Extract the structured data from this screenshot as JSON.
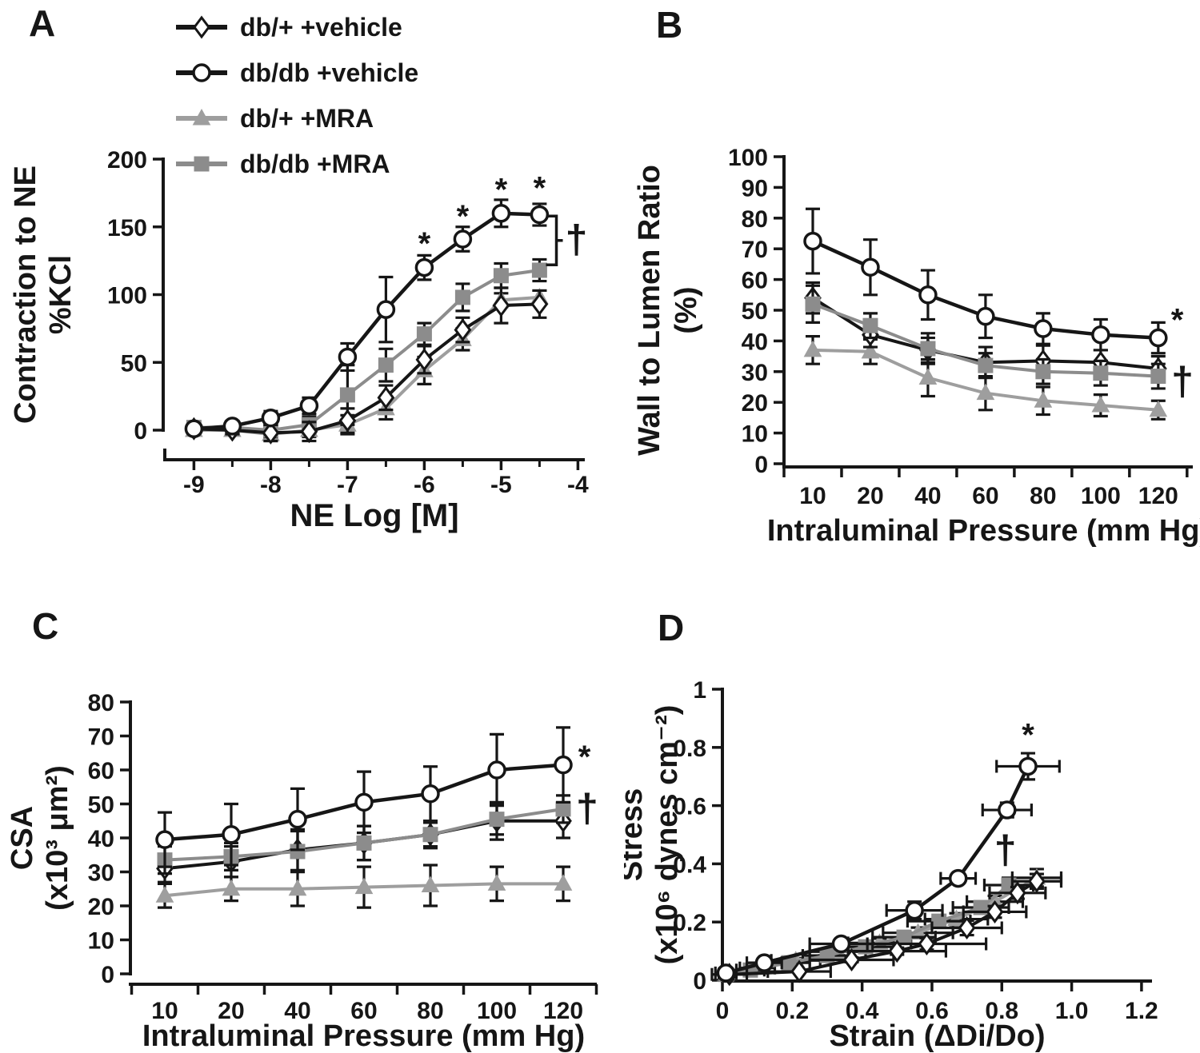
{
  "symbols": {
    "star": "*",
    "dagger": "†"
  },
  "colors": {
    "black": "#161616",
    "gray": "#8c8c8c",
    "gray_light": "#9e9e9e",
    "white": "#ffffff",
    "background": "#ffffff"
  },
  "legend": {
    "items": [
      {
        "label": "db/+ +vehicle",
        "marker": "diamond-open",
        "color": "black"
      },
      {
        "label": "db/db +vehicle",
        "marker": "circle-open",
        "color": "black"
      },
      {
        "label": "db/+ +MRA",
        "marker": "triangle-filled",
        "color": "gray_light"
      },
      {
        "label": "db/db +MRA",
        "marker": "square-filled",
        "color": "gray"
      }
    ]
  },
  "chart_data": [
    {
      "id": "A",
      "panel_label": "A",
      "type": "line",
      "xlabel": "NE Log [M]",
      "ylabel_lines": [
        "Contraction to NE",
        "%KCl"
      ],
      "xlim": [
        -9.4,
        -3.9
      ],
      "ylim": [
        0,
        200
      ],
      "grid": false,
      "legend_position": "top-left",
      "has_legend": true,
      "yticks": [
        {
          "v": 0,
          "label": "0"
        },
        {
          "v": 50,
          "label": "50"
        },
        {
          "v": 100,
          "label": "100"
        },
        {
          "v": 150,
          "label": "150"
        },
        {
          "v": 200,
          "label": "200"
        }
      ],
      "xtick_marks": [
        -9,
        -8,
        -7,
        -6,
        -5,
        -4
      ],
      "xminor": [
        -8.5,
        -7.5,
        -6.5,
        -5.5,
        -4.5
      ],
      "xtick_labels": [
        {
          "v": -9,
          "label": "-9"
        },
        {
          "v": -8,
          "label": "-8"
        },
        {
          "v": -7,
          "label": "-7"
        },
        {
          "v": -6,
          "label": "-6"
        },
        {
          "v": -5,
          "label": "-5"
        },
        {
          "v": -4,
          "label": "-4"
        }
      ],
      "x": [
        -9,
        -8.5,
        -8,
        -7.5,
        -7,
        -6.5,
        -6,
        -5.5,
        -5,
        -4.5
      ],
      "series": [
        {
          "key": "db-plus-vehicle",
          "name": "db/+ +vehicle",
          "marker": "diamond-open",
          "color": "black",
          "y": [
            1,
            0,
            -2,
            -1,
            7,
            24,
            52,
            74,
            92,
            93
          ],
          "yerr": [
            2,
            3,
            6,
            7,
            9,
            9,
            10,
            9,
            13,
            10
          ]
        },
        {
          "key": "db-db-vehicle",
          "name": "db/db +vehicle",
          "marker": "circle-open",
          "color": "black",
          "y": [
            1,
            3,
            9,
            18,
            54,
            89,
            120,
            141,
            160,
            159
          ],
          "yerr": [
            2,
            3,
            5,
            6,
            10,
            24,
            9,
            9,
            10,
            8
          ]
        },
        {
          "key": "db-plus-mra",
          "name": "db/+ +MRA",
          "marker": "triangle-filled",
          "color": "gray_light",
          "y": [
            0,
            0,
            -3,
            0,
            4,
            16,
            44,
            67,
            96,
            98
          ],
          "yerr": [
            2,
            3,
            5,
            5,
            7,
            8,
            10,
            8,
            5,
            5
          ]
        },
        {
          "key": "db-db-mra",
          "name": "db/db +MRA",
          "marker": "square-filled",
          "color": "gray",
          "y": [
            2,
            2,
            0,
            4,
            26,
            48,
            71,
            98,
            114,
            118
          ],
          "yerr": [
            3,
            3,
            5,
            6,
            22,
            12,
            8,
            10,
            9,
            8
          ]
        }
      ],
      "draw_order": [
        2,
        3,
        0,
        1
      ],
      "annotations": [
        {
          "type": "star",
          "x": -6,
          "y": 138
        },
        {
          "type": "star",
          "x": -5.5,
          "y": 158
        },
        {
          "type": "star",
          "x": -5,
          "y": 178
        },
        {
          "type": "star",
          "x": -4.5,
          "y": 179
        },
        {
          "type": "bracket",
          "x": -4.28,
          "y1": 158,
          "y2": 122
        },
        {
          "type": "dagger",
          "x": -4.02,
          "y": 140
        }
      ]
    },
    {
      "id": "B",
      "panel_label": "B",
      "type": "line",
      "xlabel": "Intraluminal Pressure (mm Hg)",
      "ylabel_lines": [
        "Wall to Lumen Ratio",
        "(%)"
      ],
      "xlim": [
        -0.5,
        6.6
      ],
      "ylim": [
        0,
        100
      ],
      "grid": false,
      "has_legend": false,
      "yticks": [
        {
          "v": 0,
          "label": "0"
        },
        {
          "v": 10,
          "label": "10"
        },
        {
          "v": 20,
          "label": "20"
        },
        {
          "v": 30,
          "label": "30"
        },
        {
          "v": 40,
          "label": "40"
        },
        {
          "v": 50,
          "label": "50"
        },
        {
          "v": 60,
          "label": "60"
        },
        {
          "v": 70,
          "label": "70"
        },
        {
          "v": 80,
          "label": "80"
        },
        {
          "v": 90,
          "label": "90"
        },
        {
          "v": 100,
          "label": "100"
        }
      ],
      "xtick_marks": [
        -0.5,
        0.5,
        1.5,
        2.5,
        3.5,
        4.5,
        5.5,
        6.5
      ],
      "xminor": [],
      "xtick_labels": [
        {
          "v": 0,
          "label": "10"
        },
        {
          "v": 1,
          "label": "20"
        },
        {
          "v": 2,
          "label": "40"
        },
        {
          "v": 3,
          "label": "60"
        },
        {
          "v": 4,
          "label": "80"
        },
        {
          "v": 5,
          "label": "100"
        },
        {
          "v": 6,
          "label": "120"
        }
      ],
      "x": [
        0,
        1,
        2,
        3,
        4,
        5,
        6
      ],
      "series": [
        {
          "key": "db-plus-vehicle",
          "name": "db/+ +vehicle",
          "marker": "diamond-open",
          "color": "black",
          "y": [
            54,
            42,
            37,
            33,
            33.5,
            33,
            31
          ],
          "yerr": [
            5,
            4,
            4,
            5,
            5,
            4,
            4
          ]
        },
        {
          "key": "db-db-vehicle",
          "name": "db/db +vehicle",
          "marker": "circle-open",
          "color": "black",
          "y": [
            72.5,
            64,
            55,
            48,
            44,
            42,
            41
          ],
          "yerr": [
            10.5,
            9,
            8,
            7,
            5,
            5,
            5
          ]
        },
        {
          "key": "db-plus-mra",
          "name": "db/+ +MRA",
          "marker": "triangle-filled",
          "color": "gray_light",
          "y": [
            37,
            36.5,
            28,
            23,
            20.5,
            19,
            17.5
          ],
          "yerr": [
            4.5,
            4,
            6,
            5.5,
            4.5,
            3.5,
            3
          ]
        },
        {
          "key": "db-db-mra",
          "name": "db/db +MRA",
          "marker": "square-filled",
          "color": "gray",
          "y": [
            52,
            45,
            37.5,
            32,
            30,
            29.5,
            28.5
          ],
          "yerr": [
            6,
            4,
            5,
            4,
            4,
            4,
            4
          ]
        }
      ],
      "draw_order": [
        2,
        0,
        3,
        1
      ],
      "annotations": [
        {
          "type": "star",
          "x": 6.33,
          "y": 47
        },
        {
          "type": "dagger",
          "x": 6.42,
          "y": 26.5
        }
      ]
    },
    {
      "id": "C",
      "panel_label": "C",
      "type": "line",
      "xlabel": "Intraluminal Pressure (mm Hg)",
      "ylabel_lines": [
        "CSA",
        "(x10³ μm²)"
      ],
      "xlim": [
        -0.518,
        6.506
      ],
      "ylim": [
        0,
        80
      ],
      "grid": false,
      "has_legend": false,
      "yticks": [
        {
          "v": 0,
          "label": "0"
        },
        {
          "v": 10,
          "label": "10"
        },
        {
          "v": 20,
          "label": "20"
        },
        {
          "v": 30,
          "label": "30"
        },
        {
          "v": 40,
          "label": "40"
        },
        {
          "v": 50,
          "label": "50"
        },
        {
          "v": 60,
          "label": "60"
        },
        {
          "v": 70,
          "label": "70"
        },
        {
          "v": 80,
          "label": "80"
        }
      ],
      "xtick_marks": [
        -0.5,
        0.5,
        1.5,
        2.5,
        3.5,
        4.5,
        5.5,
        6.5
      ],
      "xminor": [],
      "xtick_labels": [
        {
          "v": 0,
          "label": "10"
        },
        {
          "v": 1,
          "label": "20"
        },
        {
          "v": 2,
          "label": "40"
        },
        {
          "v": 3,
          "label": "60"
        },
        {
          "v": 4,
          "label": "80"
        },
        {
          "v": 5,
          "label": "100"
        },
        {
          "v": 6,
          "label": "120"
        }
      ],
      "x": [
        0,
        1,
        2,
        3,
        4,
        5,
        6
      ],
      "series": [
        {
          "key": "db-plus-vehicle",
          "name": "db/+ +vehicle",
          "marker": "diamond-open",
          "color": "black",
          "y": [
            31,
            33,
            36.5,
            38.5,
            41,
            45,
            45
          ],
          "yerr": [
            4,
            4.5,
            6,
            5,
            3.5,
            5.5,
            5
          ]
        },
        {
          "key": "db-db-vehicle",
          "name": "db/db +vehicle",
          "marker": "circle-open",
          "color": "black",
          "y": [
            39.5,
            41,
            45.5,
            50.5,
            53,
            60,
            61.5
          ],
          "yerr": [
            8,
            9,
            9,
            9,
            8,
            10.5,
            11
          ]
        },
        {
          "key": "db-plus-mra",
          "name": "db/+ +MRA",
          "marker": "triangle-filled",
          "color": "gray_light",
          "y": [
            23,
            25,
            25,
            25.5,
            26,
            26.5,
            26.5
          ],
          "yerr": [
            3.5,
            3.5,
            5,
            6,
            6,
            5,
            5
          ]
        },
        {
          "key": "db-db-mra",
          "name": "db/db +MRA",
          "marker": "square-filled",
          "color": "gray",
          "y": [
            33.5,
            34.5,
            36,
            38.5,
            41,
            45.5,
            48.5
          ],
          "yerr": [
            4,
            4,
            6,
            5,
            4,
            4.5,
            4
          ]
        }
      ],
      "draw_order": [
        2,
        0,
        3,
        1
      ],
      "annotations": [
        {
          "type": "star",
          "x": 6.32,
          "y": 64
        },
        {
          "type": "dagger",
          "x": 6.36,
          "y": 48.5
        }
      ]
    },
    {
      "id": "D",
      "panel_label": "D",
      "type": "line",
      "xlabel": "Strain (ΔDi/Do)",
      "ylabel_lines": [
        "Stress",
        "(x10⁶ dynes cm⁻²)"
      ],
      "xlim": [
        0,
        1.23
      ],
      "ylim": [
        0,
        1
      ],
      "grid": false,
      "has_legend": false,
      "yticks": [
        {
          "v": 0,
          "label": "0"
        },
        {
          "v": 0.2,
          "label": "0.2"
        },
        {
          "v": 0.4,
          "label": "0.4"
        },
        {
          "v": 0.6,
          "label": "0.6"
        },
        {
          "v": 0.8,
          "label": "0.8"
        },
        {
          "v": 1,
          "label": "1"
        }
      ],
      "xtick_marks": [
        0,
        0.2,
        0.4,
        0.6,
        0.8,
        1.0,
        1.2
      ],
      "xminor": [],
      "xtick_labels": [
        {
          "v": 0,
          "label": "0"
        },
        {
          "v": 0.2,
          "label": "0.2"
        },
        {
          "v": 0.4,
          "label": "0.4"
        },
        {
          "v": 0.6,
          "label": "0.6"
        },
        {
          "v": 0.8,
          "label": "0.8"
        },
        {
          "v": 1.0,
          "label": "1.0"
        },
        {
          "v": 1.2,
          "label": "1.2"
        }
      ],
      "series": [
        {
          "key": "db-plus-vehicle",
          "name": "db/+ +vehicle",
          "marker": "diamond-open",
          "color": "black",
          "x": [
            0.02,
            0.22,
            0.37,
            0.5,
            0.585,
            0.7,
            0.78,
            0.845,
            0.9
          ],
          "y": [
            0.02,
            0.03,
            0.07,
            0.1,
            0.125,
            0.18,
            0.235,
            0.3,
            0.34
          ],
          "xerr": [
            0.05,
            0.09,
            0.12,
            0.14,
            0.17,
            0.1,
            0.09,
            0.08,
            0.07
          ],
          "yerr": [
            0.004,
            0.005,
            0.008,
            0.012,
            0.02,
            0.025,
            0.02,
            0.02,
            0.025
          ]
        },
        {
          "key": "db-db-vehicle",
          "name": "db/db +vehicle",
          "marker": "circle-open",
          "color": "black",
          "x": [
            0.01,
            0.12,
            0.34,
            0.55,
            0.675,
            0.815,
            0.875
          ],
          "y": [
            0.025,
            0.06,
            0.125,
            0.24,
            0.35,
            0.585,
            0.735
          ],
          "xerr": [
            0.03,
            0.05,
            0.09,
            0.08,
            0.05,
            0.07,
            0.09
          ],
          "yerr": [
            0.005,
            0.008,
            0.012,
            0.03,
            0.012,
            0.025,
            0.045
          ]
        },
        {
          "key": "db-plus-mra",
          "name": "db/+ +MRA",
          "marker": "triangle-filled",
          "color": "gray_light",
          "x": [
            0.01,
            0.1,
            0.21,
            0.33,
            0.45,
            0.56,
            0.67,
            0.78,
            0.9
          ],
          "y": [
            0.02,
            0.042,
            0.068,
            0.098,
            0.128,
            0.163,
            0.21,
            0.27,
            0.352
          ],
          "xerr": [
            0.02,
            0.05,
            0.07,
            0.08,
            0.09,
            0.1,
            0.09,
            0.08,
            0.07
          ],
          "yerr": [
            0.004,
            0.006,
            0.008,
            0.012,
            0.015,
            0.018,
            0.02,
            0.02,
            0.03
          ]
        },
        {
          "key": "db-db-mra",
          "name": "db/db +MRA",
          "marker": "square-filled",
          "color": "gray",
          "x": [
            0.01,
            0.08,
            0.19,
            0.3,
            0.41,
            0.52,
            0.62,
            0.74,
            0.82
          ],
          "y": [
            0.02,
            0.035,
            0.06,
            0.085,
            0.115,
            0.148,
            0.203,
            0.25,
            0.327
          ],
          "xerr": [
            0.02,
            0.04,
            0.06,
            0.07,
            0.08,
            0.09,
            0.09,
            0.08,
            0.07
          ],
          "yerr": [
            0.004,
            0.005,
            0.008,
            0.01,
            0.015,
            0.02,
            0.02,
            0.02,
            0.025
          ]
        }
      ],
      "draw_order": [
        2,
        3,
        0,
        1
      ],
      "annotations": [
        {
          "type": "star",
          "x": 0.875,
          "y": 0.845
        },
        {
          "type": "dagger",
          "x": 0.81,
          "y": 0.445
        }
      ]
    }
  ]
}
